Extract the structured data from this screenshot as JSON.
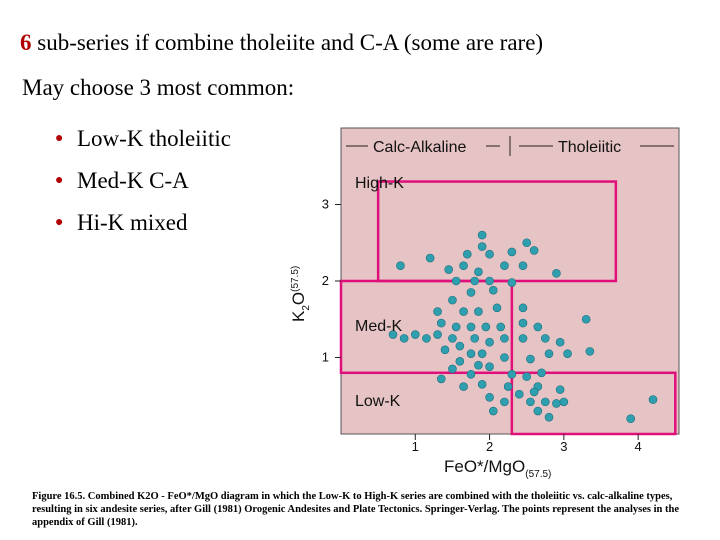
{
  "slide": {
    "title_number": "6",
    "title_rest": " sub-series if combine tholeiite and C-A (some are rare)",
    "subtitle": "May choose 3 most common:",
    "bullets": [
      "Low-K tholeiitic",
      "Med-K C-A",
      "Hi-K mixed"
    ]
  },
  "caption": {
    "text": "Figure 16.5. Combined K2O - FeO*/MgO diagram in which the Low-K to High-K series are combined with the tholeiitic vs. calc-alkaline types, resulting in six andesite series, after Gill (1981) Orogenic Andesites and Plate Tectonics. Springer-Verlag. The points represent the analyses in the appendix of Gill (1981)."
  },
  "colors": {
    "plot_bg": "#e6c3c4",
    "box": "#e0107a",
    "point": "#2f9fb0",
    "accent": "#b00000"
  },
  "chart_data": {
    "type": "scatter",
    "xlabel": "FeO*/MgO",
    "xlabel_sub": "(57.5)",
    "ylabel": "K",
    "ylabel_sub2": "2",
    "ylabel_o": "O",
    "ylabel_sub": "(57.5)",
    "x_ticks": [
      "1",
      "2",
      "3",
      "4"
    ],
    "y_ticks": [
      "1",
      "2",
      "3"
    ],
    "xlim": [
      0.0,
      4.55
    ],
    "ylim": [
      0.0,
      4.0
    ],
    "header_left": "Calc-Alkaline",
    "header_right": "Tholeiitic",
    "region_labels": [
      "High-K",
      "Med-K",
      "Low-K"
    ],
    "regions": [
      {
        "name": "high-k",
        "x": [
          0.5,
          3.7
        ],
        "y": [
          2.0,
          3.3
        ]
      },
      {
        "name": "med-k",
        "x": [
          0.0,
          2.3
        ],
        "y": [
          0.8,
          2.0
        ]
      },
      {
        "name": "low-k",
        "x": [
          2.3,
          4.5
        ],
        "y": [
          0.0,
          0.8
        ]
      }
    ],
    "points": [
      [
        1.9,
        2.6
      ],
      [
        1.7,
        2.35
      ],
      [
        1.9,
        2.45
      ],
      [
        2.0,
        2.35
      ],
      [
        2.3,
        2.38
      ],
      [
        2.5,
        2.5
      ],
      [
        2.6,
        2.4
      ],
      [
        2.2,
        2.2
      ],
      [
        2.45,
        2.2
      ],
      [
        2.9,
        2.1
      ],
      [
        1.85,
        2.12
      ],
      [
        0.8,
        2.2
      ],
      [
        1.2,
        2.3
      ],
      [
        1.45,
        2.15
      ],
      [
        1.65,
        2.2
      ],
      [
        1.55,
        2.0
      ],
      [
        1.8,
        2.0
      ],
      [
        2.0,
        2.0
      ],
      [
        2.05,
        1.88
      ],
      [
        2.3,
        1.98
      ],
      [
        1.75,
        1.85
      ],
      [
        1.5,
        1.75
      ],
      [
        1.3,
        1.6
      ],
      [
        1.65,
        1.6
      ],
      [
        1.85,
        1.6
      ],
      [
        2.1,
        1.65
      ],
      [
        2.45,
        1.65
      ],
      [
        1.35,
        1.45
      ],
      [
        1.55,
        1.4
      ],
      [
        1.75,
        1.4
      ],
      [
        1.95,
        1.4
      ],
      [
        2.15,
        1.4
      ],
      [
        2.45,
        1.45
      ],
      [
        2.65,
        1.4
      ],
      [
        3.3,
        1.5
      ],
      [
        0.7,
        1.3
      ],
      [
        0.85,
        1.25
      ],
      [
        1.0,
        1.3
      ],
      [
        1.15,
        1.25
      ],
      [
        1.3,
        1.3
      ],
      [
        1.5,
        1.25
      ],
      [
        1.6,
        1.15
      ],
      [
        1.8,
        1.25
      ],
      [
        2.0,
        1.2
      ],
      [
        2.2,
        1.25
      ],
      [
        2.45,
        1.25
      ],
      [
        2.75,
        1.25
      ],
      [
        2.95,
        1.2
      ],
      [
        1.4,
        1.1
      ],
      [
        1.75,
        1.05
      ],
      [
        1.9,
        1.05
      ],
      [
        1.6,
        0.95
      ],
      [
        2.2,
        1.0
      ],
      [
        2.55,
        0.98
      ],
      [
        2.8,
        1.05
      ],
      [
        3.05,
        1.05
      ],
      [
        3.35,
        1.08
      ],
      [
        1.5,
        0.85
      ],
      [
        1.75,
        0.78
      ],
      [
        1.85,
        0.9
      ],
      [
        2.0,
        0.88
      ],
      [
        2.3,
        0.78
      ],
      [
        2.5,
        0.75
      ],
      [
        2.7,
        0.8
      ],
      [
        1.35,
        0.72
      ],
      [
        1.65,
        0.62
      ],
      [
        1.9,
        0.65
      ],
      [
        2.25,
        0.62
      ],
      [
        2.4,
        0.52
      ],
      [
        2.65,
        0.62
      ],
      [
        2.95,
        0.58
      ],
      [
        2.0,
        0.48
      ],
      [
        2.2,
        0.42
      ],
      [
        2.55,
        0.42
      ],
      [
        2.75,
        0.42
      ],
      [
        2.9,
        0.4
      ],
      [
        3.0,
        0.42
      ],
      [
        2.65,
        0.3
      ],
      [
        2.05,
        0.3
      ],
      [
        2.8,
        0.22
      ],
      [
        3.9,
        0.2
      ],
      [
        4.2,
        0.45
      ],
      [
        2.6,
        0.55
      ]
    ]
  }
}
